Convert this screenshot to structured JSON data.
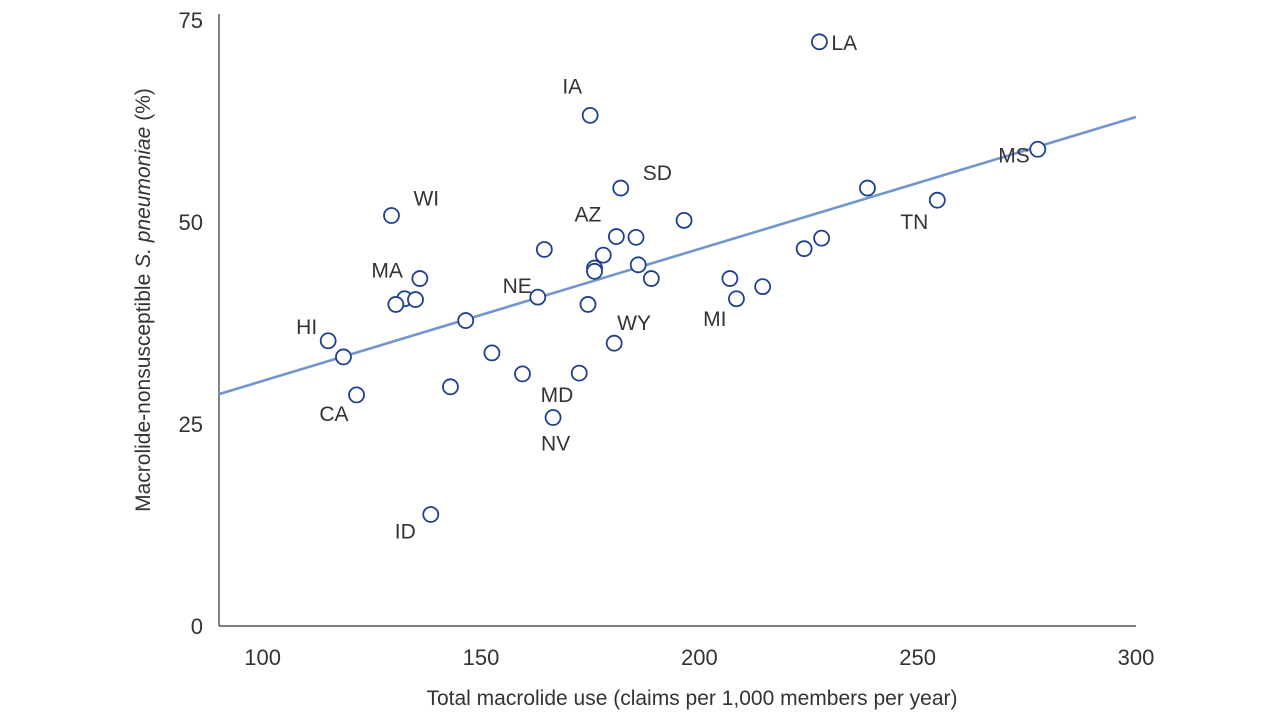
{
  "chart_data": {
    "type": "scatter",
    "xlabel": "Total macrolide use (claims per 1,000 members per year)",
    "ylabel_prefix": "Macrolide-nonsusceptible ",
    "ylabel_italic": "S. pneumoniae",
    "ylabel_suffix": " (%)",
    "xlim": [
      90,
      300
    ],
    "ylim": [
      0,
      75
    ],
    "xticks": [
      100,
      150,
      200,
      250,
      300
    ],
    "yticks": [
      0,
      25,
      50,
      75
    ],
    "trendline": {
      "x": [
        90,
        300
      ],
      "y": [
        28.7,
        63
      ]
    },
    "colors": {
      "point": "#1f3f8f",
      "trend": "#7096cc",
      "axis": "#333333"
    },
    "points": [
      {
        "x": 227.5,
        "y": 72.3,
        "label": "LA"
      },
      {
        "x": 175,
        "y": 63.2,
        "label": "IA"
      },
      {
        "x": 277.5,
        "y": 59.0,
        "label": "MS"
      },
      {
        "x": 182,
        "y": 54.2,
        "label": "SD"
      },
      {
        "x": 238.5,
        "y": 54.2,
        "label": ""
      },
      {
        "x": 254.5,
        "y": 52.7,
        "label": "TN"
      },
      {
        "x": 129.5,
        "y": 50.8,
        "label": "WI"
      },
      {
        "x": 196.5,
        "y": 50.2,
        "label": ""
      },
      {
        "x": 181,
        "y": 48.2,
        "label": "AZ"
      },
      {
        "x": 185.5,
        "y": 48.1,
        "label": ""
      },
      {
        "x": 228,
        "y": 48.0,
        "label": ""
      },
      {
        "x": 164.5,
        "y": 46.6,
        "label": ""
      },
      {
        "x": 224,
        "y": 46.7,
        "label": ""
      },
      {
        "x": 178,
        "y": 45.9,
        "label": ""
      },
      {
        "x": 186,
        "y": 44.7,
        "label": ""
      },
      {
        "x": 176,
        "y": 44.3,
        "label": ""
      },
      {
        "x": 176,
        "y": 43.9,
        "label": ""
      },
      {
        "x": 136,
        "y": 43.0,
        "label": "MA"
      },
      {
        "x": 189,
        "y": 43.0,
        "label": ""
      },
      {
        "x": 207,
        "y": 43.0,
        "label": ""
      },
      {
        "x": 214.5,
        "y": 42.0,
        "label": ""
      },
      {
        "x": 163,
        "y": 40.7,
        "label": "NE"
      },
      {
        "x": 208.5,
        "y": 40.5,
        "label": "MI"
      },
      {
        "x": 132.5,
        "y": 40.5,
        "label": ""
      },
      {
        "x": 135,
        "y": 40.4,
        "label": ""
      },
      {
        "x": 130.5,
        "y": 39.8,
        "label": ""
      },
      {
        "x": 174.5,
        "y": 39.8,
        "label": ""
      },
      {
        "x": 146.5,
        "y": 37.8,
        "label": ""
      },
      {
        "x": 115,
        "y": 35.3,
        "label": "HI"
      },
      {
        "x": 180.5,
        "y": 35.0,
        "label": "WY"
      },
      {
        "x": 152.5,
        "y": 33.8,
        "label": ""
      },
      {
        "x": 118.5,
        "y": 33.3,
        "label": ""
      },
      {
        "x": 159.5,
        "y": 31.2,
        "label": ""
      },
      {
        "x": 172.5,
        "y": 31.3,
        "label": "MD"
      },
      {
        "x": 143,
        "y": 29.6,
        "label": ""
      },
      {
        "x": 121.5,
        "y": 28.6,
        "label": "CA"
      },
      {
        "x": 166.5,
        "y": 25.8,
        "label": "NV"
      },
      {
        "x": 138.5,
        "y": 13.8,
        "label": "ID"
      }
    ]
  }
}
